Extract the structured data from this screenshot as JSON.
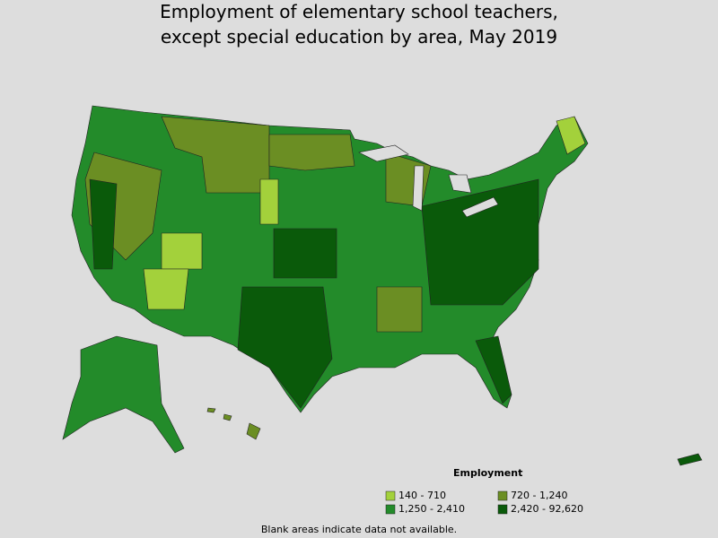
{
  "title": [
    "Employment of elementary school teachers,",
    "except special education by area, May 2019"
  ],
  "legend": {
    "title": "Employment",
    "items": [
      {
        "label": "140 - 710",
        "color": "#a3d13b"
      },
      {
        "label": "720 - 1,240",
        "color": "#6b8e23"
      },
      {
        "label": "1,250 - 2,410",
        "color": "#238b2a"
      },
      {
        "label": "2,420 - 92,620",
        "color": "#0a5a0a"
      }
    ]
  },
  "footnote": "Blank areas indicate data not available."
}
